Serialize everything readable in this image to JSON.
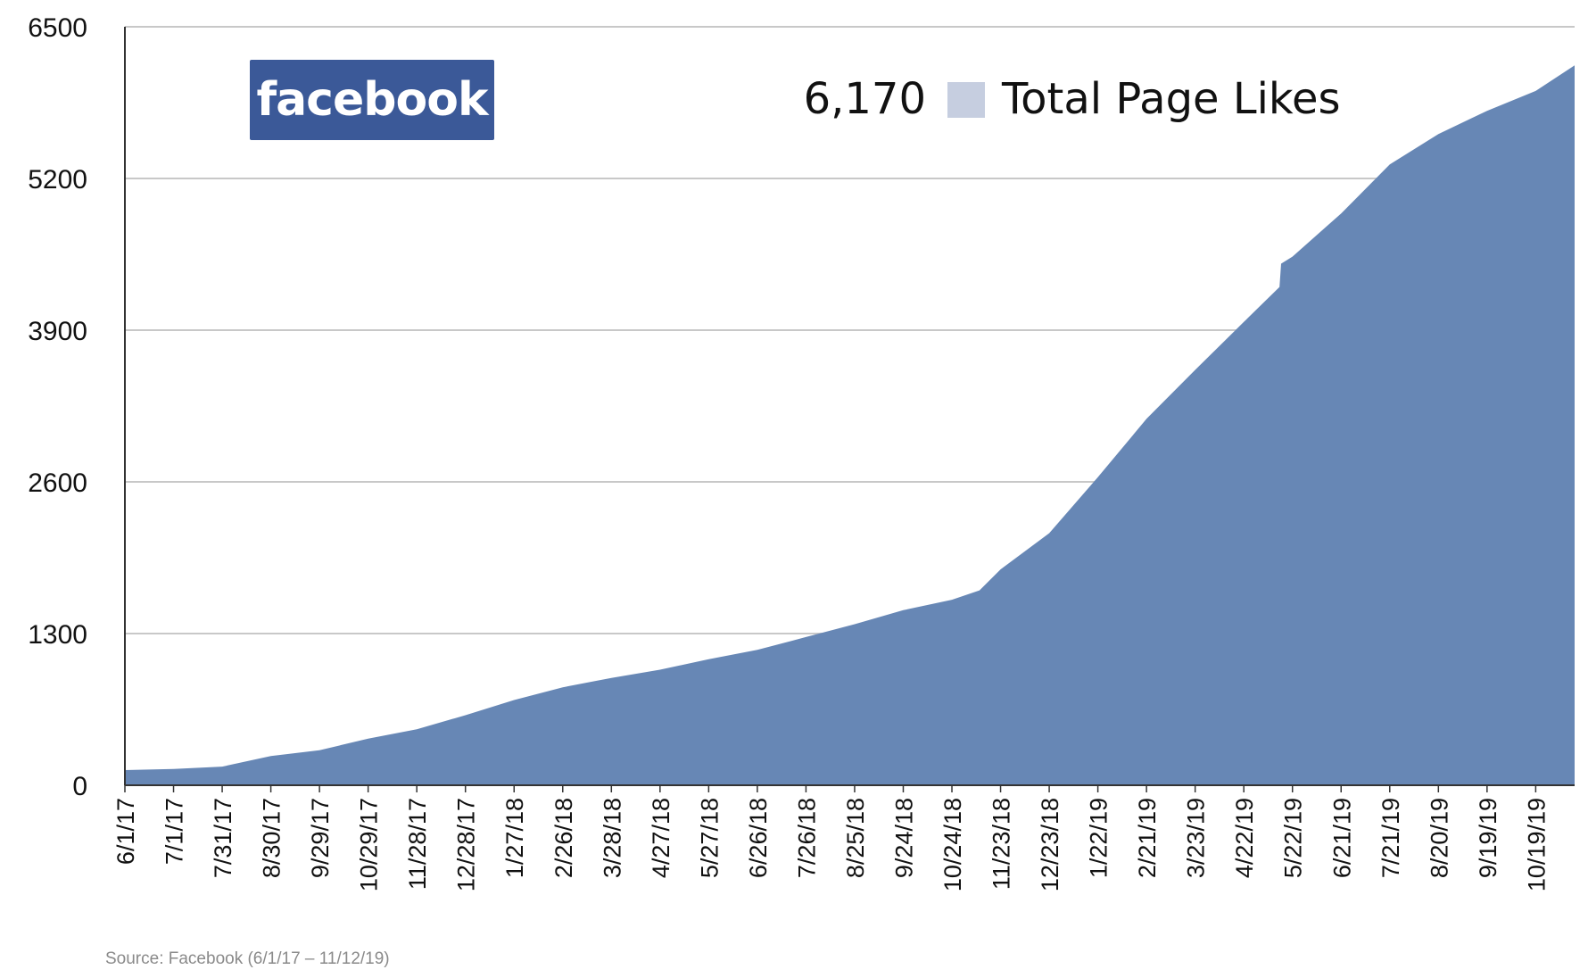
{
  "chart_data": {
    "type": "area",
    "title": "",
    "legend": {
      "value_label": "6,170",
      "series_label": "Total Page Likes"
    },
    "series": [
      {
        "name": "Total Page Likes",
        "color": "#6787b5",
        "legend_swatch_color": "#c6cee0"
      }
    ],
    "ylim": [
      0,
      6500
    ],
    "y_ticks": [
      "0",
      "1300",
      "2600",
      "3900",
      "5200",
      "6500"
    ],
    "x_tick_labels": [
      "6/1/17",
      "7/1/17",
      "7/31/17",
      "8/30/17",
      "9/29/17",
      "10/29/17",
      "11/28/17",
      "12/28/17",
      "1/27/18",
      "2/26/18",
      "3/28/18",
      "4/27/18",
      "5/27/18",
      "6/26/18",
      "7/26/18",
      "8/25/18",
      "9/24/18",
      "10/24/18",
      "11/23/18",
      "12/23/18",
      "1/22/19",
      "2/21/19",
      "3/23/19",
      "4/22/19",
      "5/22/19",
      "6/21/19",
      "7/21/19",
      "8/20/19",
      "9/19/19",
      "10/19/19"
    ],
    "x_last_date": "11/12/19",
    "points": [
      [
        "6/1/17",
        130
      ],
      [
        "7/1/17",
        140
      ],
      [
        "7/31/17",
        160
      ],
      [
        "8/30/17",
        250
      ],
      [
        "9/29/17",
        300
      ],
      [
        "10/29/17",
        400
      ],
      [
        "11/28/17",
        480
      ],
      [
        "12/28/17",
        600
      ],
      [
        "1/27/18",
        730
      ],
      [
        "2/26/18",
        840
      ],
      [
        "3/28/18",
        920
      ],
      [
        "4/27/18",
        990
      ],
      [
        "5/27/18",
        1080
      ],
      [
        "6/26/18",
        1160
      ],
      [
        "7/26/18",
        1270
      ],
      [
        "8/25/18",
        1380
      ],
      [
        "9/24/18",
        1500
      ],
      [
        "10/24/18",
        1590
      ],
      [
        "11/10/18",
        1670
      ],
      [
        "11/23/18",
        1850
      ],
      [
        "12/23/18",
        2160
      ],
      [
        "1/22/19",
        2640
      ],
      [
        "2/21/19",
        3140
      ],
      [
        "3/23/19",
        3560
      ],
      [
        "4/22/19",
        3970
      ],
      [
        "5/14/19",
        4270
      ],
      [
        "5/15/19",
        4470
      ],
      [
        "5/22/19",
        4530
      ],
      [
        "6/21/19",
        4900
      ],
      [
        "7/21/19",
        5320
      ],
      [
        "8/20/19",
        5580
      ],
      [
        "9/19/19",
        5780
      ],
      [
        "10/19/19",
        5950
      ],
      [
        "11/12/19",
        6170
      ]
    ],
    "grid": true
  },
  "logo": {
    "text": "facebook",
    "bg_color": "#3b5998"
  },
  "source_note": "Source: Facebook (6/1/17 – 11/12/19)"
}
